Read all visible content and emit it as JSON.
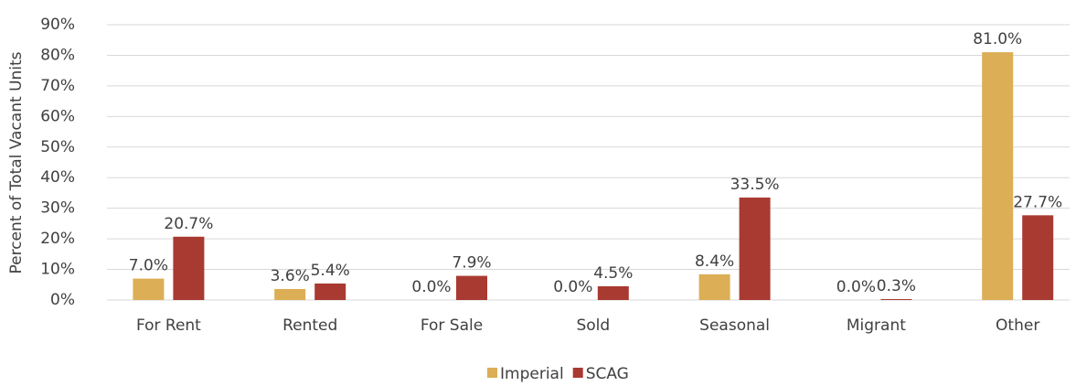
{
  "chart_data": {
    "type": "bar",
    "y_axis_label": "Percent of Total Vacant Units",
    "categories": [
      "For Rent",
      "Rented",
      "For Sale",
      "Sold",
      "Seasonal",
      "Migrant",
      "Other"
    ],
    "series": [
      {
        "name": "Imperial",
        "color": "#dcae55",
        "values": [
          7.0,
          3.6,
          0.0,
          0.0,
          8.4,
          0.0,
          81.0
        ],
        "value_labels": [
          "7.0%",
          "3.6%",
          "0.0%",
          "0.0%",
          "8.4%",
          "0.0%",
          "81.0%"
        ]
      },
      {
        "name": "SCAG",
        "color": "#a93a31",
        "values": [
          20.7,
          5.4,
          7.9,
          4.5,
          33.5,
          0.3,
          27.7
        ],
        "value_labels": [
          "20.7%",
          "5.4%",
          "7.9%",
          "4.5%",
          "33.5%",
          "0.3%",
          "27.7%"
        ]
      }
    ],
    "ylim": [
      0,
      90
    ],
    "yticks": [
      {
        "value": 0,
        "label": "0%"
      },
      {
        "value": 10,
        "label": "10%"
      },
      {
        "value": 20,
        "label": "20%"
      },
      {
        "value": 30,
        "label": "30%"
      },
      {
        "value": 40,
        "label": "40%"
      },
      {
        "value": 50,
        "label": "50%"
      },
      {
        "value": 60,
        "label": "60%"
      },
      {
        "value": 70,
        "label": "70%"
      },
      {
        "value": 80,
        "label": "80%"
      },
      {
        "value": 90,
        "label": "90%"
      }
    ],
    "grid": true,
    "legend": "bottom"
  }
}
